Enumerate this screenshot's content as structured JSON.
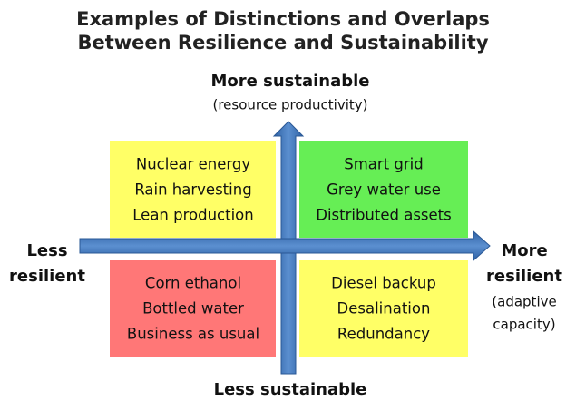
{
  "title": [
    "Examples of Distinctions and Overlaps",
    "Between Resilience and Sustainability"
  ],
  "axes": {
    "top": {
      "label": "More sustainable",
      "sublabel": "(resource productivity)"
    },
    "bottom": {
      "label": "Less sustainable"
    },
    "left": {
      "label": [
        "Less",
        "resilient"
      ]
    },
    "right": {
      "label": [
        "More",
        "resilient"
      ],
      "sublabel": [
        "(adaptive",
        "capacity)"
      ]
    }
  },
  "quadrants": [
    {
      "items": [
        "Nuclear energy",
        "Rain harvesting",
        "Lean production"
      ]
    },
    {
      "items": [
        "Smart grid",
        "Grey water use",
        "Distributed assets"
      ]
    },
    {
      "items": [
        "Corn ethanol",
        "Bottled water",
        "Business as usual"
      ]
    },
    {
      "items": [
        "Diesel backup",
        "Desalination",
        "Redundancy"
      ]
    }
  ]
}
